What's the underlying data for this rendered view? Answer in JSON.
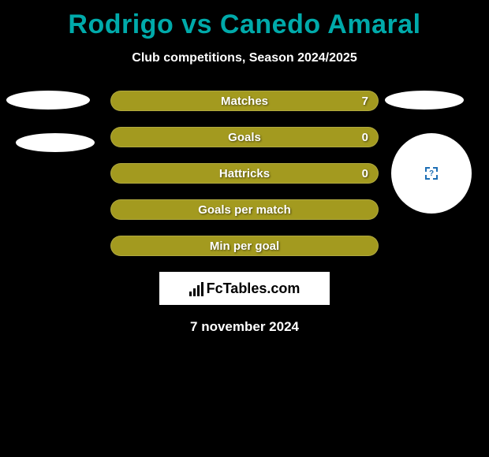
{
  "title": "Rodrigo vs Canedo Amaral",
  "subtitle": "Club competitions, Season 2024/2025",
  "date": "7 november 2024",
  "brand_text": "FcTables.com",
  "colors": {
    "background": "#000000",
    "title": "#00aaaa",
    "bar_primary": "#a39a1f",
    "bar_secondary": "#b7a62b",
    "text": "#ffffff"
  },
  "bars": [
    {
      "label": "Matches",
      "value": "7",
      "fill_pct": 100,
      "show_value": true
    },
    {
      "label": "Goals",
      "value": "0",
      "fill_pct": 100,
      "show_value": true
    },
    {
      "label": "Hattricks",
      "value": "0",
      "fill_pct": 100,
      "show_value": true
    },
    {
      "label": "Goals per match",
      "value": "",
      "fill_pct": 100,
      "show_value": false
    },
    {
      "label": "Min per goal",
      "value": "",
      "fill_pct": 100,
      "show_value": false
    }
  ],
  "avatar_glyph": "?"
}
